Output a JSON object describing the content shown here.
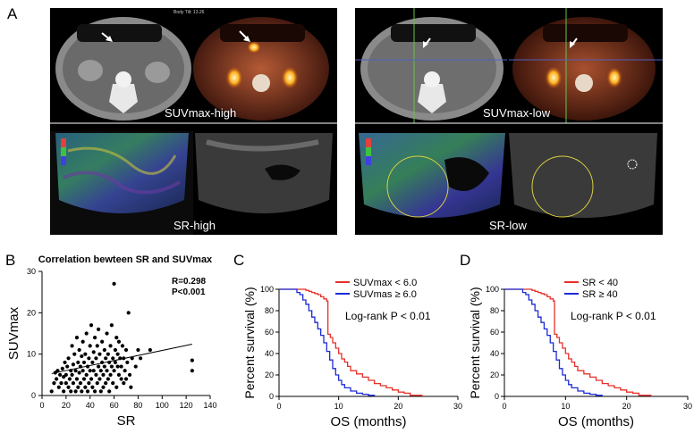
{
  "panel_labels": {
    "a": "A",
    "b": "B",
    "c": "C",
    "d": "D"
  },
  "panel_a": {
    "ct_overlay_text": "Body Tilt: 13.26",
    "captions": [
      "SUVmax-high",
      "SUVmax-low",
      "SR-high",
      "SR-low"
    ]
  },
  "chart_data": [
    {
      "type": "scatter",
      "title": "Correlation bewteen SR and SUVmax",
      "xlabel": "SR",
      "ylabel": "SUVmax",
      "xlim": [
        0,
        140
      ],
      "ylim": [
        0,
        30
      ],
      "xticks": [
        "0",
        "20",
        "40",
        "60",
        "80",
        "100",
        "120",
        "140"
      ],
      "yticks": [
        "0",
        "10",
        "20",
        "30"
      ],
      "annotation": [
        "R=0.298",
        "P<0.001"
      ],
      "trendline": {
        "x": [
          8,
          125
        ],
        "y": [
          5.3,
          12.4
        ]
      },
      "points": [
        [
          8,
          1
        ],
        [
          10,
          3
        ],
        [
          11,
          5.5
        ],
        [
          12,
          4
        ],
        [
          13,
          6
        ],
        [
          14,
          2
        ],
        [
          15,
          5
        ],
        [
          16,
          3
        ],
        [
          17,
          6.5
        ],
        [
          18,
          1
        ],
        [
          18,
          4.5
        ],
        [
          19,
          8
        ],
        [
          20,
          3
        ],
        [
          20,
          5
        ],
        [
          21,
          7
        ],
        [
          22,
          2
        ],
        [
          22,
          9
        ],
        [
          23,
          4
        ],
        [
          24,
          6
        ],
        [
          24,
          1
        ],
        [
          25,
          12
        ],
        [
          25,
          5
        ],
        [
          26,
          3
        ],
        [
          26,
          7.5
        ],
        [
          27,
          10
        ],
        [
          28,
          1
        ],
        [
          28,
          6
        ],
        [
          29,
          4
        ],
        [
          29,
          14
        ],
        [
          30,
          8
        ],
        [
          30,
          2
        ],
        [
          31,
          5.5
        ],
        [
          31,
          11
        ],
        [
          32,
          3
        ],
        [
          32,
          7
        ],
        [
          33,
          9.5
        ],
        [
          33,
          1
        ],
        [
          34,
          6
        ],
        [
          34,
          13
        ],
        [
          35,
          4
        ],
        [
          35,
          8
        ],
        [
          36,
          2
        ],
        [
          36,
          10
        ],
        [
          37,
          5
        ],
        [
          37,
          15
        ],
        [
          38,
          7
        ],
        [
          38,
          1
        ],
        [
          39,
          9
        ],
        [
          39,
          3
        ],
        [
          40,
          6
        ],
        [
          40,
          12
        ],
        [
          41,
          4
        ],
        [
          41,
          17
        ],
        [
          42,
          8
        ],
        [
          42,
          2
        ],
        [
          43,
          10.5
        ],
        [
          43,
          6
        ],
        [
          44,
          1
        ],
        [
          44,
          14
        ],
        [
          45,
          5
        ],
        [
          45,
          9
        ],
        [
          46,
          3
        ],
        [
          46,
          12
        ],
        [
          47,
          7
        ],
        [
          47,
          16
        ],
        [
          48,
          4
        ],
        [
          48,
          10
        ],
        [
          49,
          6
        ],
        [
          49,
          1
        ],
        [
          50,
          8
        ],
        [
          50,
          13
        ],
        [
          51,
          2
        ],
        [
          51,
          5
        ],
        [
          52,
          11
        ],
        [
          52,
          7
        ],
        [
          53,
          9
        ],
        [
          53,
          3
        ],
        [
          54,
          6
        ],
        [
          54,
          15
        ],
        [
          55,
          4
        ],
        [
          55,
          10
        ],
        [
          56,
          8
        ],
        [
          56,
          1
        ],
        [
          57,
          12
        ],
        [
          57,
          5
        ],
        [
          58,
          7
        ],
        [
          58,
          17
        ],
        [
          59,
          9
        ],
        [
          59,
          3
        ],
        [
          60,
          6
        ],
        [
          60,
          27
        ],
        [
          61,
          11
        ],
        [
          61,
          8
        ],
        [
          62,
          14
        ],
        [
          62,
          2
        ],
        [
          63,
          7
        ],
        [
          63,
          10
        ],
        [
          64,
          5
        ],
        [
          64,
          13
        ],
        [
          65,
          9
        ],
        [
          66,
          4
        ],
        [
          66,
          7
        ],
        [
          67,
          12
        ],
        [
          68,
          3
        ],
        [
          68,
          9
        ],
        [
          69,
          6
        ],
        [
          70,
          11
        ],
        [
          70,
          4
        ],
        [
          71,
          8
        ],
        [
          72,
          20
        ],
        [
          73,
          5
        ],
        [
          74,
          2
        ],
        [
          75,
          9
        ],
        [
          78,
          7
        ],
        [
          80,
          11
        ],
        [
          82,
          9
        ],
        [
          90,
          11
        ],
        [
          125,
          8.5
        ],
        [
          125,
          6
        ]
      ]
    },
    {
      "type": "line",
      "subtype": "kaplan-meier",
      "xlabel": "OS (months)",
      "ylabel": "Percent survival (%)",
      "xlim": [
        0,
        30
      ],
      "ylim": [
        0,
        100
      ],
      "xticks": [
        "0",
        "10",
        "20",
        "30"
      ],
      "yticks": [
        "0",
        "20",
        "40",
        "60",
        "80",
        "100"
      ],
      "annotation": "Log-rank P < 0.01",
      "series": [
        {
          "name": "SUVmax < 6.0",
          "color": "#e8302a",
          "x": [
            0,
            4,
            4.5,
            5,
            5.5,
            6,
            6.5,
            7,
            7.5,
            8,
            8.2,
            8.6,
            9,
            9.5,
            10,
            10.5,
            11,
            11.5,
            12,
            13,
            14,
            15,
            16,
            17,
            18,
            19,
            20,
            21,
            22,
            24
          ],
          "y": [
            100,
            100,
            99,
            98,
            97,
            96,
            95,
            93,
            91,
            89,
            58,
            55,
            50,
            45,
            40,
            35,
            32,
            28,
            24,
            21,
            18,
            15,
            12,
            10,
            8,
            6,
            4,
            3,
            1,
            0
          ]
        },
        {
          "name": "SUVmas ≥ 6.0",
          "color": "#1c2bd8",
          "x": [
            0,
            2,
            3,
            3.5,
            4,
            4.5,
            5,
            5.5,
            6,
            6.5,
            7,
            7.5,
            8,
            8.5,
            9,
            9.5,
            10,
            10.5,
            11,
            12,
            13,
            14,
            15,
            16
          ],
          "y": [
            100,
            100,
            97,
            95,
            90,
            86,
            80,
            74,
            69,
            63,
            57,
            50,
            42,
            34,
            26,
            20,
            15,
            11,
            8,
            5,
            3,
            2,
            1,
            0
          ]
        }
      ]
    },
    {
      "type": "line",
      "subtype": "kaplan-meier",
      "xlabel": "OS (months)",
      "ylabel": "Percent survival (%)",
      "xlim": [
        0,
        30
      ],
      "ylim": [
        0,
        100
      ],
      "xticks": [
        "0",
        "10",
        "20",
        "30"
      ],
      "yticks": [
        "0",
        "20",
        "40",
        "60",
        "80",
        "100"
      ],
      "annotation": "Log-rank P < 0.01",
      "series": [
        {
          "name": "SR < 40",
          "color": "#e8302a",
          "x": [
            0,
            4,
            4.5,
            5,
            5.5,
            6,
            6.5,
            7,
            7.5,
            8,
            8.2,
            8.6,
            9,
            9.5,
            10,
            10.5,
            11,
            11.5,
            12,
            13,
            14,
            15,
            16,
            17,
            18,
            19,
            20,
            21,
            22,
            24
          ],
          "y": [
            100,
            100,
            99,
            98,
            97,
            96,
            95,
            93,
            91,
            89,
            58,
            55,
            50,
            45,
            40,
            35,
            32,
            28,
            24,
            21,
            18,
            15,
            12,
            10,
            8,
            6,
            4,
            3,
            1,
            0
          ]
        },
        {
          "name": "SR ≥ 40",
          "color": "#1c2bd8",
          "x": [
            0,
            2,
            3,
            3.5,
            4,
            4.5,
            5,
            5.5,
            6,
            6.5,
            7,
            7.5,
            8,
            8.5,
            9,
            9.5,
            10,
            10.5,
            11,
            12,
            13,
            14,
            15,
            16
          ],
          "y": [
            100,
            100,
            97,
            95,
            90,
            86,
            80,
            74,
            69,
            63,
            57,
            50,
            42,
            34,
            26,
            20,
            15,
            11,
            8,
            5,
            3,
            2,
            1,
            0
          ]
        }
      ]
    }
  ]
}
